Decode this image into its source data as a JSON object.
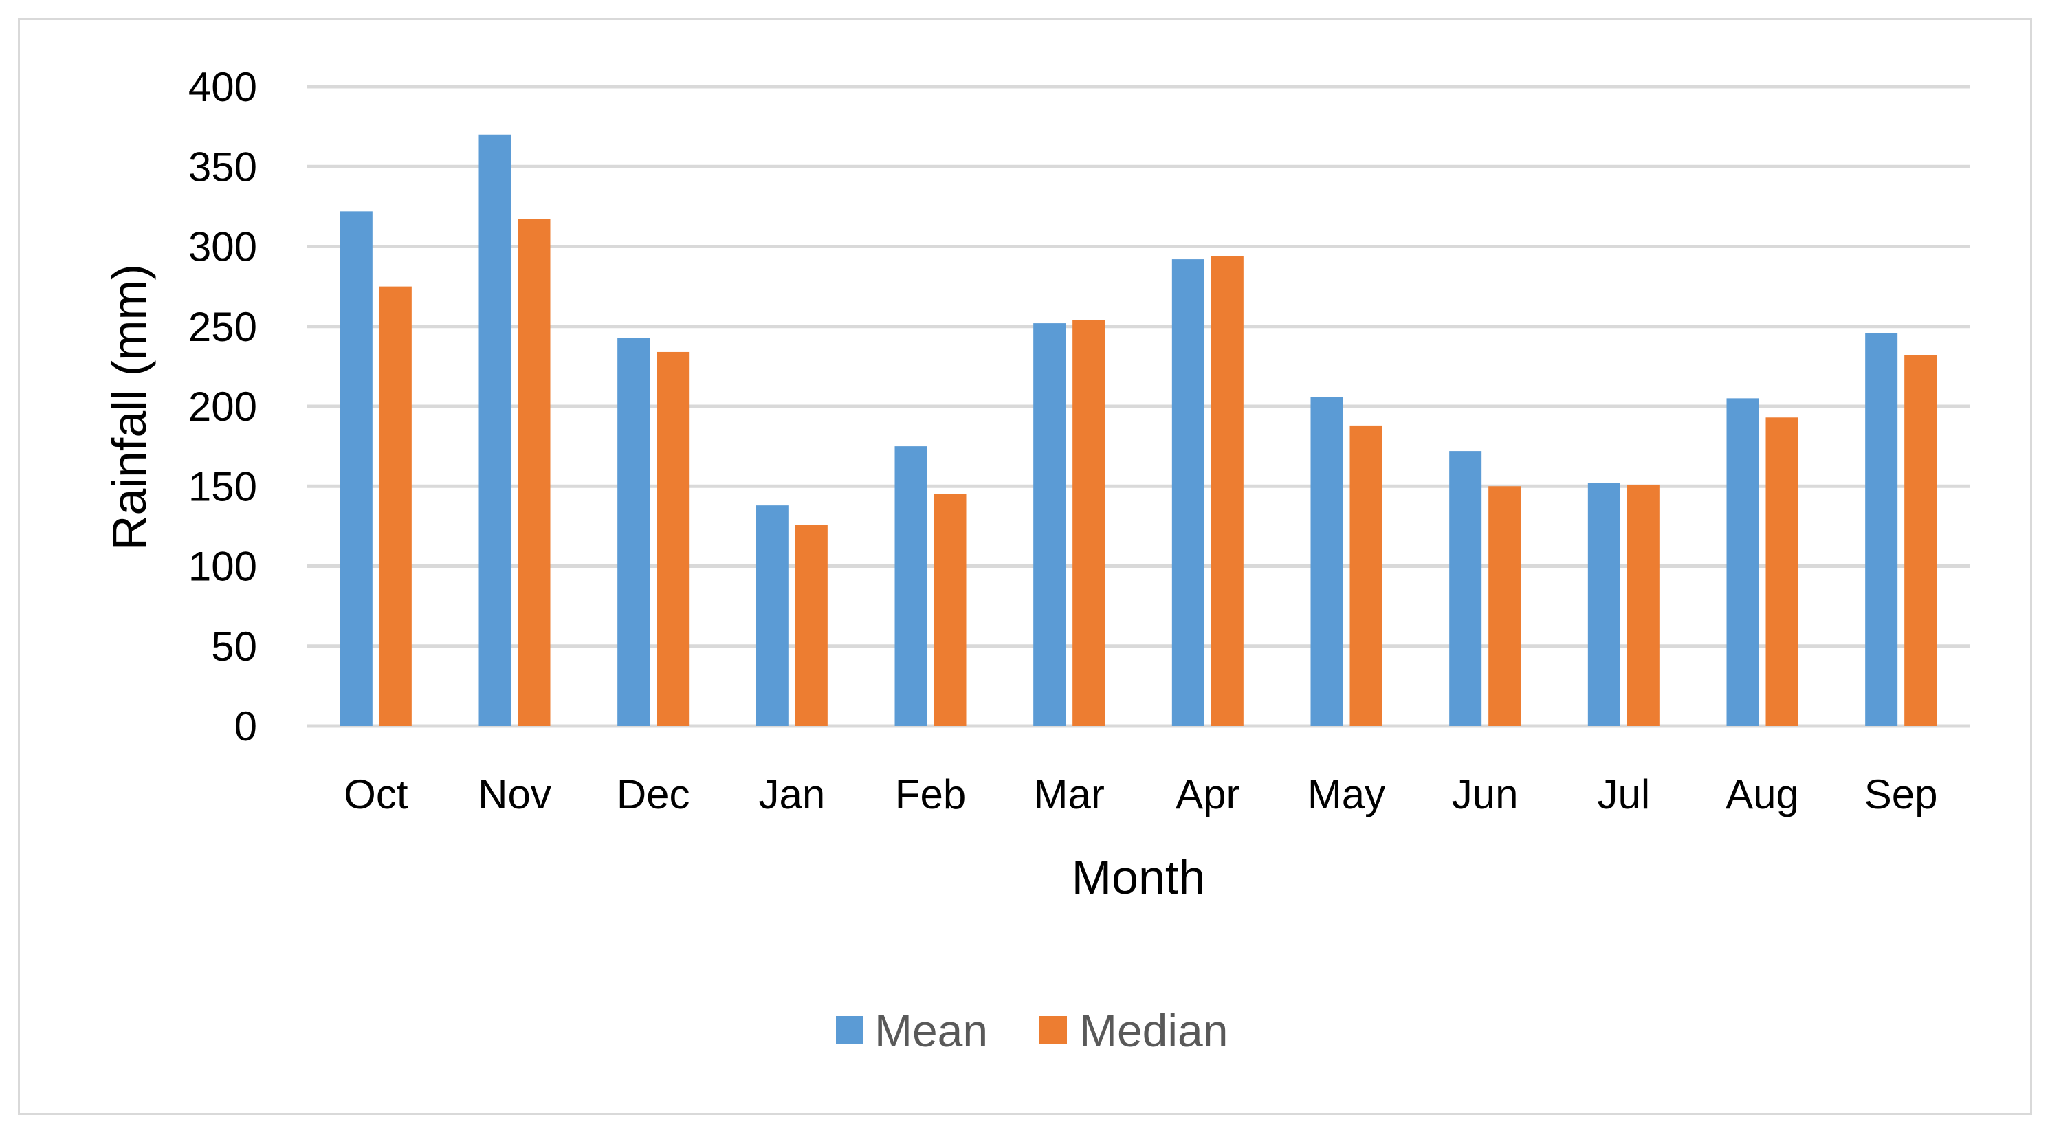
{
  "chart_data": {
    "type": "bar",
    "categories": [
      "Oct",
      "Nov",
      "Dec",
      "Jan",
      "Feb",
      "Mar",
      "Apr",
      "May",
      "Jun",
      "Jul",
      "Aug",
      "Sep"
    ],
    "series": [
      {
        "name": "Mean",
        "color": "#5b9bd5",
        "values": [
          322,
          370,
          243,
          138,
          175,
          252,
          292,
          206,
          172,
          152,
          205,
          246
        ]
      },
      {
        "name": "Median",
        "color": "#ed7d31",
        "values": [
          275,
          317,
          234,
          126,
          145,
          254,
          294,
          188,
          150,
          151,
          193,
          232
        ]
      }
    ],
    "xlabel": "Month",
    "ylabel": "Rainfall (mm)",
    "ylim": [
      0,
      400
    ],
    "yticks": [
      0,
      50,
      100,
      150,
      200,
      250,
      300,
      350,
      400
    ],
    "grid": true,
    "legend": "bottom",
    "gridColor": "#d9d9d9"
  }
}
